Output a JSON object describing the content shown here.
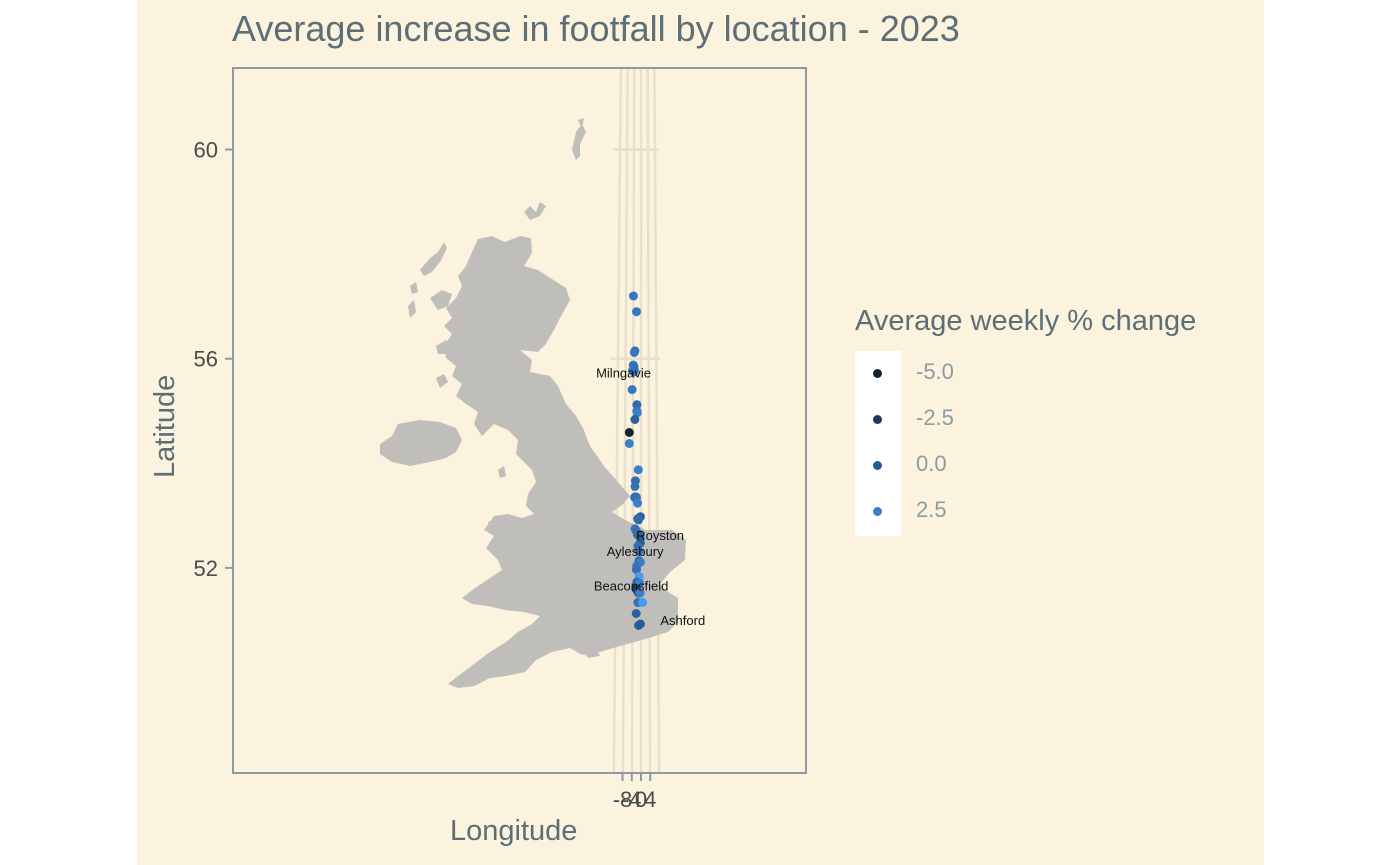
{
  "chart_data": {
    "type": "scatter",
    "title": "Average increase in footfall by location - 2023",
    "xlabel": "Longitude",
    "ylabel": "Latitude",
    "xlim": [
      -11.4,
      4.7
    ],
    "ylim": [
      49.0,
      61.7
    ],
    "x_ticks": [
      -8,
      -4,
      0,
      4
    ],
    "y_ticks": [
      52,
      56,
      60
    ],
    "legend": {
      "title": "Average weekly % change",
      "placement": "right",
      "entries": [
        {
          "label": "-5.0",
          "value": -5.0,
          "color": "#132132"
        },
        {
          "label": "-2.5",
          "value": -2.5,
          "color": "#1d3b5f"
        },
        {
          "label": "0.0",
          "value": 0.0,
          "color": "#2a5a93"
        },
        {
          "label": "2.5",
          "value": 2.5,
          "color": "#3b7fc9"
        }
      ]
    },
    "grid": true,
    "background": "#fcf3df",
    "land_color": "#c0bebb",
    "points": [
      {
        "lon": -4.07,
        "lat": 57.2,
        "value": 2.0
      },
      {
        "lon": -2.42,
        "lat": 56.9,
        "value": 2.0
      },
      {
        "lon": -3.17,
        "lat": 56.15,
        "value": 1.5
      },
      {
        "lon": -3.49,
        "lat": 56.12,
        "value": 2.0
      },
      {
        "lon": -3.99,
        "lat": 55.88,
        "value": 2.0
      },
      {
        "lon": -3.61,
        "lat": 55.85,
        "value": 1.5
      },
      {
        "lon": -4.4,
        "lat": 55.78,
        "value": 2.5
      },
      {
        "lon": -3.71,
        "lat": 55.75,
        "value": 2.0
      },
      {
        "lon": -3.4,
        "lat": 55.78,
        "value": 1.5
      },
      {
        "lon": -4.58,
        "lat": 55.41,
        "value": 2.0,
        "label": "Milngavie"
      },
      {
        "lon": -5.93,
        "lat": 54.59,
        "value": -5.5
      },
      {
        "lon": -5.89,
        "lat": 54.38,
        "value": 2.5
      },
      {
        "lon": -2.11,
        "lat": 55.12,
        "value": 1.0
      },
      {
        "lon": -2.11,
        "lat": 55.0,
        "value": 2.0
      },
      {
        "lon": -1.88,
        "lat": 54.97,
        "value": 2.5
      },
      {
        "lon": -3.1,
        "lat": 54.84,
        "value": 0.5
      },
      {
        "lon": -1.36,
        "lat": 53.88,
        "value": 2.5
      },
      {
        "lon": -2.77,
        "lat": 53.67,
        "value": 1.5
      },
      {
        "lon": -2.98,
        "lat": 53.56,
        "value": 1.5
      },
      {
        "lon": -3.18,
        "lat": 53.35,
        "value": 2.5
      },
      {
        "lon": -2.5,
        "lat": 53.36,
        "value": -0.5
      },
      {
        "lon": -2.21,
        "lat": 53.35,
        "value": 1.5
      },
      {
        "lon": -1.7,
        "lat": 53.24,
        "value": 2.5
      },
      {
        "lon": -0.27,
        "lat": 52.98,
        "value": 0.5
      },
      {
        "lon": -1.6,
        "lat": 52.94,
        "value": 1.0
      },
      {
        "lon": -1.24,
        "lat": 52.92,
        "value": 1.0
      },
      {
        "lon": -2.88,
        "lat": 52.75,
        "value": 1.5
      },
      {
        "lon": -2.51,
        "lat": 52.72,
        "value": 1.5
      },
      {
        "lon": -1.73,
        "lat": 52.64,
        "value": 1.5
      },
      {
        "lon": -1.28,
        "lat": 52.66,
        "value": 1.5
      },
      {
        "lon": -0.5,
        "lat": 52.6,
        "value": 0.5
      },
      {
        "lon": -0.36,
        "lat": 52.48,
        "value": 0.0,
        "label": "Royston"
      },
      {
        "lon": -1.48,
        "lat": 52.42,
        "value": 1.5
      },
      {
        "lon": -1.04,
        "lat": 52.32,
        "value": 1.5
      },
      {
        "lon": -0.95,
        "lat": 52.14,
        "value": 1.0
      },
      {
        "lon": -0.3,
        "lat": 52.11,
        "value": 2.5
      },
      {
        "lon": -2.07,
        "lat": 52.04,
        "value": 2.0,
        "label": "Aylesbury"
      },
      {
        "lon": -2.17,
        "lat": 51.97,
        "value": 1.5
      },
      {
        "lon": -0.87,
        "lat": 51.84,
        "value": 3.0
      },
      {
        "lon": -1.96,
        "lat": 51.73,
        "value": 1.0
      },
      {
        "lon": -0.64,
        "lat": 51.71,
        "value": 2.5
      },
      {
        "lon": -2.48,
        "lat": 51.61,
        "value": -2.5
      },
      {
        "lon": -1.9,
        "lat": 51.57,
        "value": -2.5
      },
      {
        "lon": -1.18,
        "lat": 51.52,
        "value": 0.5
      },
      {
        "lon": -0.43,
        "lat": 51.52,
        "value": 2.5
      },
      {
        "lon": -1.48,
        "lat": 51.34,
        "value": 1.5,
        "label": "Beaconsfield"
      },
      {
        "lon": 0.77,
        "lat": 51.34,
        "value": 3.0
      },
      {
        "lon": -2.24,
        "lat": 51.13,
        "value": 0.5
      },
      {
        "lon": -1.16,
        "lat": 50.9,
        "value": 0.5
      },
      {
        "lon": -0.26,
        "lat": 50.93,
        "value": 0.0,
        "label": "Ashford"
      }
    ]
  }
}
